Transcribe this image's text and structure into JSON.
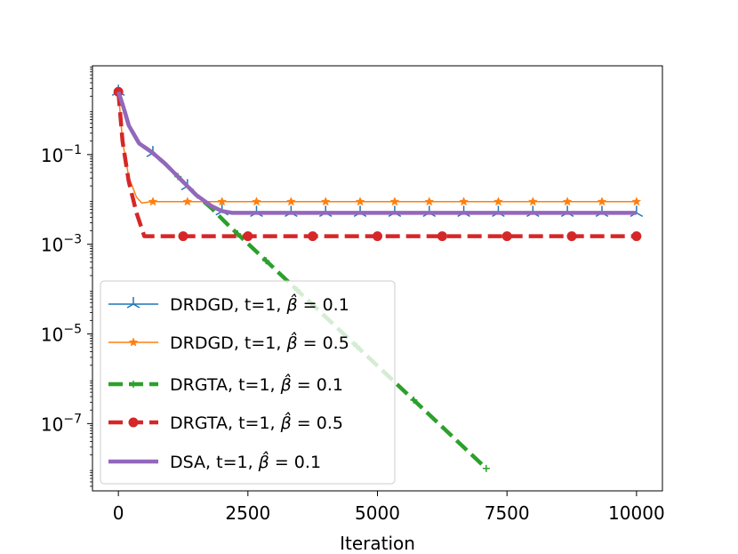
{
  "chart_data": {
    "type": "line",
    "title": "",
    "xlabel": "Iteration",
    "ylabel": "",
    "yscale": "log",
    "xlim": [
      -500,
      10500
    ],
    "ylim_log10": [
      -8.5,
      0.98
    ],
    "xticks": [
      0,
      2500,
      5000,
      7500,
      10000
    ],
    "xtick_labels": [
      "0",
      "2500",
      "5000",
      "7500",
      "10000"
    ],
    "yticks_log10": [
      -1,
      -3,
      -5,
      -7
    ],
    "ytick_labels": [
      {
        "base": "10",
        "exp": "−1"
      },
      {
        "base": "10",
        "exp": "−3"
      },
      {
        "base": "10",
        "exp": "−5"
      },
      {
        "base": "10",
        "exp": "−7"
      }
    ],
    "legend_position": "lower-left",
    "series": [
      {
        "name": "DRDGD, t=1, β̂=0.1",
        "label_parts": {
          "prefix": "DRDGD, t=1, ",
          "symbol": "β̂",
          "suffix": " = 0.1"
        },
        "color": "#1f77b4",
        "style": "solid",
        "width": 1.5,
        "marker": "tri",
        "x": [
          0,
          100,
          200,
          400,
          650,
          900,
          1200,
          1500,
          1800,
          2100,
          2400,
          2700,
          3500,
          5000,
          7500,
          10000
        ],
        "log10_y": [
          0.4,
          0.05,
          -0.35,
          -0.75,
          -0.95,
          -1.2,
          -1.55,
          -1.9,
          -2.2,
          -2.3,
          -2.3,
          -2.3,
          -2.3,
          -2.3,
          -2.3,
          -2.3
        ],
        "marker_x": [
          0,
          666,
          1333,
          2000,
          2666,
          3333,
          4000,
          4666,
          5333,
          6000,
          6666,
          7333,
          8000,
          8666,
          9333,
          10000
        ]
      },
      {
        "name": "DRDGD, t=1, β̂=0.5",
        "label_parts": {
          "prefix": "DRDGD, t=1, ",
          "symbol": "β̂",
          "suffix": " = 0.5"
        },
        "color": "#ff7f0e",
        "style": "solid",
        "width": 1.5,
        "marker": "star",
        "x": [
          0,
          80,
          200,
          350,
          450,
          650,
          10000
        ],
        "log10_y": [
          0.4,
          -0.7,
          -1.5,
          -1.95,
          -2.08,
          -2.05,
          -2.05
        ],
        "marker_x": [
          0,
          666,
          1333,
          2000,
          2666,
          3333,
          4000,
          4666,
          5333,
          6000,
          6666,
          7333,
          8000,
          8666,
          9333,
          10000
        ]
      },
      {
        "name": "DRGTA, t=1, β̂=0.1",
        "label_parts": {
          "prefix": "DRGTA, t=1, ",
          "symbol": "β̂",
          "suffix": " = 0.1"
        },
        "color": "#2ca02c",
        "style": "dash",
        "width": 4.5,
        "marker": "plus",
        "x": [
          0,
          100,
          200,
          400,
          650,
          900,
          1200,
          1500,
          1800,
          2100,
          7100
        ],
        "log10_y": [
          0.4,
          0.05,
          -0.35,
          -0.75,
          -0.95,
          -1.2,
          -1.55,
          -1.9,
          -2.2,
          -2.55,
          -8.0
        ],
        "marker_x": [
          0,
          1150,
          2300,
          2850,
          3450,
          4600,
          5700,
          7100
        ]
      },
      {
        "name": "DRGTA, t=1, β̂=0.5",
        "label_parts": {
          "prefix": "DRGTA, t=1, ",
          "symbol": "β̂",
          "suffix": " = 0.5"
        },
        "color": "#d62728",
        "style": "dash",
        "width": 4.5,
        "marker": "circle",
        "x": [
          0,
          80,
          200,
          350,
          500,
          10000
        ],
        "log10_y": [
          0.4,
          -0.7,
          -1.6,
          -2.3,
          -2.82,
          -2.82
        ],
        "marker_x": [
          0,
          1250,
          2500,
          3750,
          5000,
          6250,
          7500,
          8750,
          10000
        ]
      },
      {
        "name": "DSA, t=1, β̂=0.1",
        "label_parts": {
          "prefix": "DSA, t=1, ",
          "symbol": "β̂",
          "suffix": " = 0.1"
        },
        "color": "#9467bd",
        "style": "solid",
        "width": 4.5,
        "marker": "none",
        "x": [
          0,
          100,
          200,
          400,
          650,
          900,
          1200,
          1500,
          1800,
          2000,
          2200,
          2500,
          10000
        ],
        "log10_y": [
          0.4,
          0.05,
          -0.35,
          -0.75,
          -0.95,
          -1.2,
          -1.55,
          -1.9,
          -2.15,
          -2.26,
          -2.3,
          -2.3,
          -2.3
        ],
        "marker_x": []
      }
    ]
  }
}
